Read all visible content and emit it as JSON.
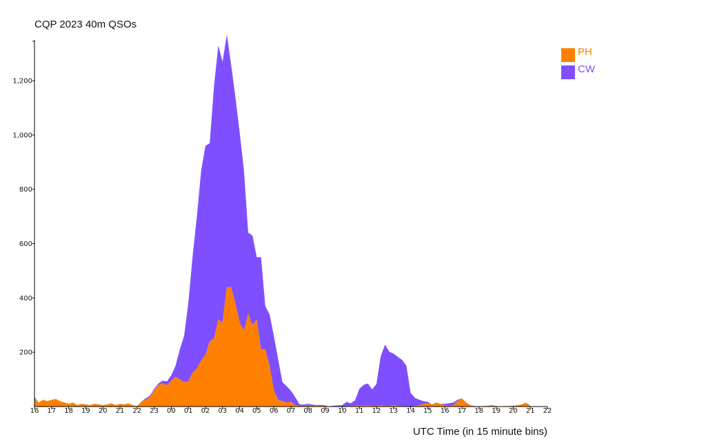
{
  "chart_data": {
    "type": "area",
    "stacked": true,
    "title": "CQP 2023 40m QSOs",
    "xlabel": "UTC Time (in 15 minute bins)",
    "ylabel": "",
    "ylim": [
      0,
      1350
    ],
    "yticks": [
      200,
      400,
      600,
      800,
      1000,
      1200
    ],
    "ytick_labels": [
      "200",
      "400",
      "600",
      "800",
      "1,000",
      "1,200"
    ],
    "hour_labels": [
      "16",
      "17",
      "18",
      "19",
      "20",
      "21",
      "22",
      "23",
      "00",
      "01",
      "02",
      "03",
      "04",
      "05",
      "06",
      "07",
      "08",
      "09",
      "10",
      "11",
      "12",
      "13",
      "14",
      "15",
      "16",
      "17",
      "18",
      "19",
      "20",
      "21",
      "22"
    ],
    "bins_per_hour": 4,
    "legend": [
      {
        "name": "PH",
        "color": "#ff8000"
      },
      {
        "name": "CW",
        "color": "#7f4fff"
      }
    ],
    "series": [
      {
        "name": "PH",
        "color": "#ff8000",
        "values": [
          30,
          15,
          25,
          20,
          25,
          28,
          20,
          15,
          10,
          15,
          5,
          10,
          8,
          5,
          10,
          8,
          5,
          8,
          12,
          5,
          10,
          8,
          12,
          5,
          2,
          18,
          25,
          35,
          60,
          80,
          85,
          78,
          95,
          110,
          100,
          90,
          92,
          125,
          140,
          170,
          190,
          240,
          250,
          320,
          310,
          440,
          440,
          380,
          310,
          280,
          340,
          300,
          320,
          210,
          210,
          150,
          60,
          25,
          20,
          15,
          18,
          5,
          3,
          2,
          5,
          2,
          2,
          3,
          2,
          1,
          1,
          1,
          0,
          2,
          2,
          3,
          5,
          5,
          5,
          3,
          3,
          5,
          3,
          2,
          5,
          3,
          2,
          1,
          0,
          2,
          5,
          10,
          12,
          8,
          15,
          10,
          5,
          2,
          5,
          20,
          30,
          15,
          5,
          2,
          1,
          2,
          3,
          5,
          2,
          1,
          2,
          2,
          3,
          5,
          8,
          15,
          3
        ]
      },
      {
        "name": "CW",
        "color": "#7f4fff",
        "values": [
          5,
          0,
          0,
          0,
          0,
          0,
          0,
          0,
          0,
          0,
          0,
          0,
          0,
          0,
          0,
          0,
          0,
          0,
          0,
          0,
          0,
          0,
          0,
          0,
          0,
          0,
          5,
          5,
          5,
          5,
          10,
          15,
          20,
          40,
          110,
          170,
          290,
          430,
          560,
          700,
          770,
          730,
          930,
          1010,
          960,
          930,
          820,
          760,
          700,
          590,
          300,
          330,
          230,
          340,
          160,
          190,
          200,
          150,
          70,
          60,
          40,
          30,
          5,
          5,
          5,
          5,
          3,
          3,
          2,
          0,
          2,
          3,
          5,
          15,
          10,
          20,
          60,
          75,
          80,
          60,
          80,
          180,
          225,
          200,
          190,
          180,
          170,
          150,
          50,
          30,
          20,
          10,
          5,
          0,
          0,
          0,
          5,
          10,
          10,
          5,
          0,
          0,
          0,
          0,
          0,
          0,
          0,
          0,
          0,
          0,
          0,
          0,
          0,
          0,
          0,
          0,
          0
        ]
      }
    ]
  }
}
